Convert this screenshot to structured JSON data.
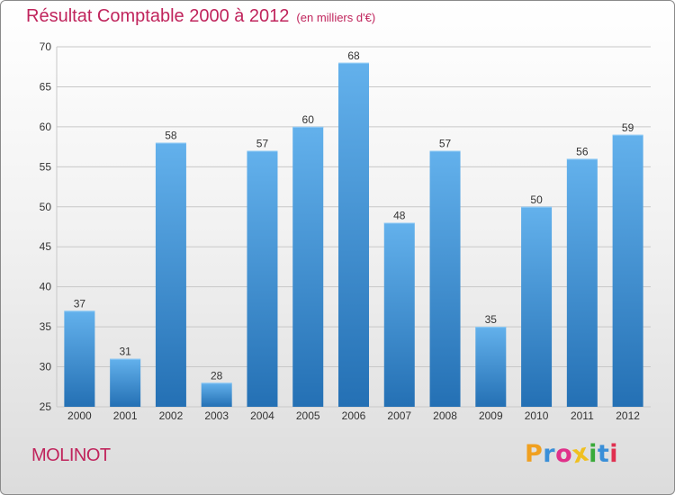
{
  "header": {
    "title": "Résultat Comptable 2000 à 2012",
    "subtitle": "(en milliers d'€)"
  },
  "footer": {
    "town": "MOLINOT",
    "brand_letters": [
      "P",
      "r",
      "o",
      "x",
      "i",
      "t",
      "i"
    ],
    "brand_colors": [
      "#f0a020",
      "#3a8fd8",
      "#e0308a",
      "#f0c020",
      "#3aaa3a",
      "#3a8fd8",
      "#e03050"
    ]
  },
  "colors": {
    "bar_top": "#63b1ec",
    "bar_bottom": "#2470b4",
    "grid": "#c8c8c8",
    "axis_text": "#333333",
    "accent": "#c0245c"
  },
  "chart_data": {
    "type": "bar",
    "title": "Résultat Comptable 2000 à 2012",
    "xlabel": "",
    "ylabel": "",
    "categories": [
      "2000",
      "2001",
      "2002",
      "2003",
      "2004",
      "2005",
      "2006",
      "2007",
      "2008",
      "2009",
      "2010",
      "2011",
      "2012"
    ],
    "values": [
      37,
      31,
      58,
      28,
      57,
      60,
      68,
      48,
      57,
      35,
      50,
      56,
      59
    ],
    "ylim": [
      25,
      70
    ],
    "yticks": [
      25,
      30,
      35,
      40,
      45,
      50,
      55,
      60,
      65,
      70
    ],
    "grid": true
  }
}
